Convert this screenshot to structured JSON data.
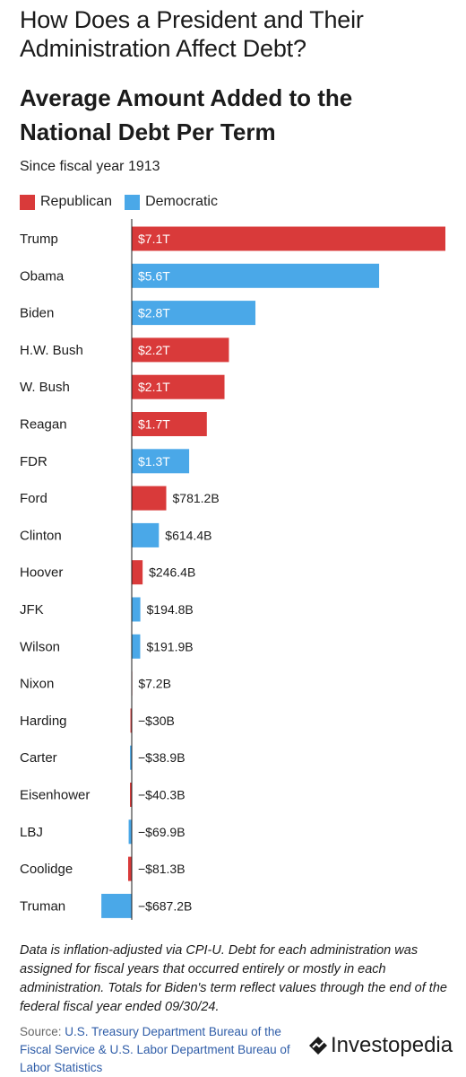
{
  "header": {
    "title": "How Does a President and Their Administration Affect Debt?",
    "subtitle": "Average Amount Added to the National Debt Per Term",
    "since": "Since fiscal year 1913"
  },
  "legend": [
    {
      "label": "Republican",
      "color": "#d93a3a"
    },
    {
      "label": "Democratic",
      "color": "#4aa8e8"
    }
  ],
  "chart_data": {
    "type": "bar",
    "orientation": "horizontal",
    "unit": "USD",
    "categories": [
      "Trump",
      "Obama",
      "Biden",
      "H.W. Bush",
      "W. Bush",
      "Reagan",
      "FDR",
      "Ford",
      "Clinton",
      "Hoover",
      "JFK",
      "Wilson",
      "Nixon",
      "Harding",
      "Carter",
      "Eisenhower",
      "LBJ",
      "Coolidge",
      "Truman"
    ],
    "values": [
      7100000000000,
      5600000000000,
      2800000000000,
      2200000000000,
      2100000000000,
      1700000000000,
      1300000000000,
      781200000000,
      614400000000,
      246400000000,
      194800000000,
      191900000000,
      7200000000,
      -30000000000,
      -38900000000,
      -40300000000,
      -69900000000,
      -81300000000,
      -687200000000
    ],
    "labels": [
      "$7.1T",
      "$5.6T",
      "$2.8T",
      "$2.2T",
      "$2.1T",
      "$1.7T",
      "$1.3T",
      "$781.2B",
      "$614.4B",
      "$246.4B",
      "$194.8B",
      "$191.9B",
      "$7.2B",
      "−$30B",
      "−$38.9B",
      "−$40.3B",
      "−$69.9B",
      "−$81.3B",
      "−$687.2B"
    ],
    "party": [
      "Republican",
      "Democratic",
      "Democratic",
      "Republican",
      "Republican",
      "Republican",
      "Democratic",
      "Republican",
      "Democratic",
      "Republican",
      "Democratic",
      "Democratic",
      "Republican",
      "Republican",
      "Democratic",
      "Republican",
      "Democratic",
      "Republican",
      "Democratic"
    ],
    "xlim": [
      -700000000000,
      7100000000000
    ],
    "grid": false,
    "legend_position": "top-left"
  },
  "footer": {
    "note": "Data is inflation-adjusted via CPI-U. Debt for each administration was assigned for fiscal years that occurred entirely or mostly in each administration. Totals for Biden's term reflect values through the end of the federal fiscal year ended 09/30/24.",
    "source_label": "Source:",
    "source_text": "U.S. Treasury Department Bureau of the Fiscal Service & U.S. Labor Department Bureau of Labor Statistics",
    "logo": "Investopedia",
    "logo_icon": "investopedia-logo-icon"
  }
}
